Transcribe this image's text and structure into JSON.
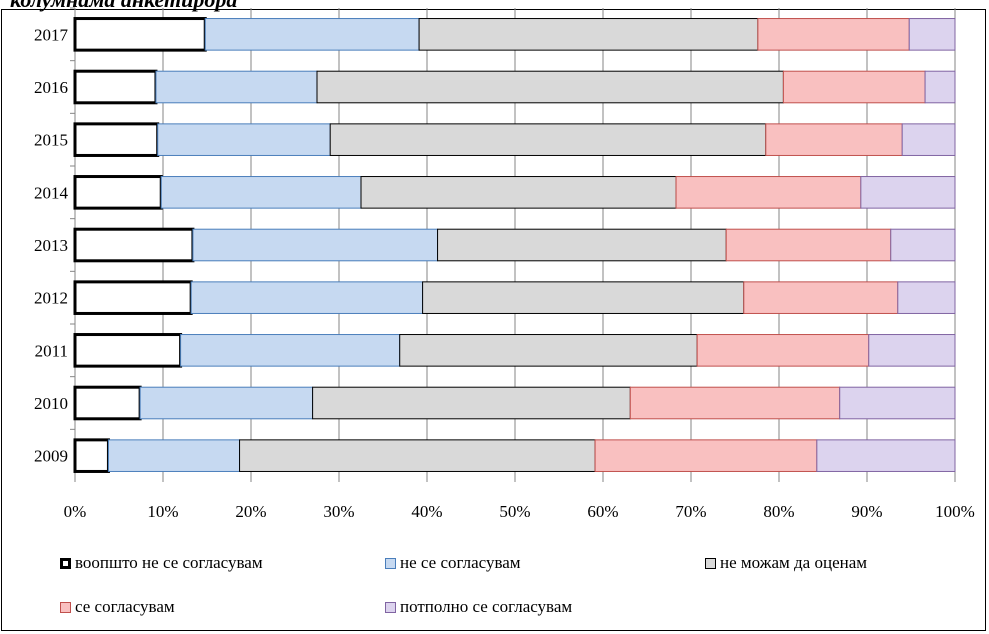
{
  "caption": "колумнама анкетирора",
  "chart_data": {
    "type": "bar",
    "orientation": "horizontal",
    "stacked": "percent",
    "categories": [
      "2017",
      "2016",
      "2015",
      "2014",
      "2013",
      "2012",
      "2011",
      "2010",
      "2009"
    ],
    "series": [
      {
        "name": "воопшто не се согласувам",
        "color": "#ffffff",
        "stroke": "#000000",
        "values": [
          14.8,
          9.2,
          9.4,
          9.8,
          13.4,
          13.2,
          12.0,
          7.4,
          3.8
        ]
      },
      {
        "name": "не се согласувам",
        "color": "#c6d9f1",
        "stroke": "#4a7ebb",
        "values": [
          24.3,
          18.3,
          19.6,
          22.7,
          27.8,
          26.3,
          24.9,
          19.6,
          14.9
        ]
      },
      {
        "name": "не можам да оценам",
        "color": "#d9d9d9",
        "stroke": "#000000",
        "values": [
          38.5,
          53.0,
          49.5,
          35.8,
          32.8,
          36.5,
          33.8,
          36.1,
          40.4
        ]
      },
      {
        "name": "се согласувам",
        "color": "#f9c0c0",
        "stroke": "#c0504d",
        "values": [
          17.2,
          16.1,
          15.5,
          21.0,
          18.7,
          17.5,
          19.5,
          23.8,
          25.2
        ]
      },
      {
        "name": "потполно се согласувам",
        "color": "#dcd3ee",
        "stroke": "#8064a2",
        "values": [
          5.2,
          3.4,
          6.0,
          10.7,
          7.3,
          6.5,
          9.8,
          13.1,
          15.7
        ]
      }
    ],
    "xlim": [
      0,
      100
    ],
    "xticks": [
      "0%",
      "10%",
      "20%",
      "30%",
      "40%",
      "50%",
      "60%",
      "70%",
      "80%",
      "90%",
      "100%"
    ],
    "grid": true,
    "legend_position": "bottom"
  }
}
